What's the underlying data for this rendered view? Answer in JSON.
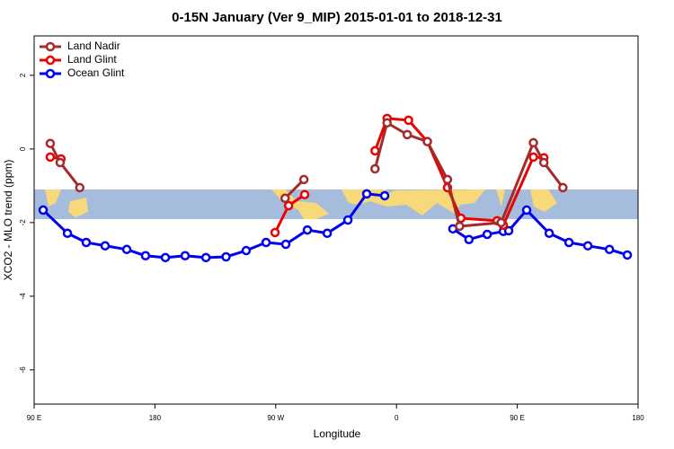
{
  "chart_data": {
    "type": "line",
    "title": "0-15N January (Ver 9_MIP)   2015-01-01 to 2018-12-31",
    "xlabel": "Longitude",
    "ylabel": "XCO2 - MLO trend (ppm)",
    "xlim": [
      90,
      540
    ],
    "xticks": [
      {
        "value": 90,
        "label": "90 E"
      },
      {
        "value": 180,
        "label": "180"
      },
      {
        "value": 270,
        "label": "90 W"
      },
      {
        "value": 360,
        "label": "0"
      },
      {
        "value": 450,
        "label": "90 E"
      },
      {
        "value": 540,
        "label": "180"
      }
    ],
    "ylim": [
      -6.93,
      3.07
    ],
    "yticks": [
      -6,
      -4,
      -2,
      0,
      2
    ],
    "legend": "top-left",
    "series": [
      {
        "name": "Land Nadir",
        "color": "#a52a2a",
        "x": [
          102,
          109.4,
          124,
          null,
          277,
          291,
          null,
          344,
          353,
          368,
          383,
          398,
          407,
          438,
          462,
          469.8,
          484
        ],
        "values": [
          0.15,
          -0.37,
          -1.05,
          null,
          -1.34,
          -0.83,
          null,
          -0.54,
          0.71,
          0.39,
          0.2,
          -0.83,
          -2.1,
          -2.0,
          0.17,
          -0.37,
          -1.05
        ]
      },
      {
        "name": "Land Glint",
        "color": "#ee0000",
        "x": [
          102,
          110,
          null,
          269.5,
          279.6,
          291.6,
          null,
          344,
          353,
          369,
          383,
          398,
          408,
          435,
          439.6,
          462,
          469.8
        ],
        "values": [
          -0.22,
          -0.27,
          null,
          -2.27,
          -1.54,
          -1.24,
          null,
          -0.05,
          0.83,
          0.78,
          0.2,
          -1.05,
          -1.88,
          -1.95,
          -2.07,
          -0.22,
          -0.24
        ]
      },
      {
        "name": "Ocean Glint",
        "color": "#0000ee",
        "x": [
          96.7,
          114.8,
          128.8,
          142.9,
          159,
          173,
          187.8,
          202.5,
          218,
          233,
          248,
          262.8,
          277.5,
          293.6,
          308.4,
          323.8,
          337.8,
          351.2,
          null,
          402,
          414,
          427.6,
          439.6,
          443.6,
          457,
          473.8,
          488.5,
          502.6,
          518.7,
          532
        ],
        "values": [
          -1.66,
          -2.29,
          -2.54,
          -2.63,
          -2.73,
          -2.9,
          -2.95,
          -2.9,
          -2.95,
          -2.93,
          -2.76,
          -2.54,
          -2.59,
          -2.2,
          -2.29,
          -1.93,
          -1.22,
          -1.27,
          null,
          -2.17,
          -2.46,
          -2.32,
          -2.24,
          -2.22,
          -1.66,
          -2.29,
          -2.54,
          -2.63,
          -2.73,
          -2.88
        ]
      }
    ]
  }
}
